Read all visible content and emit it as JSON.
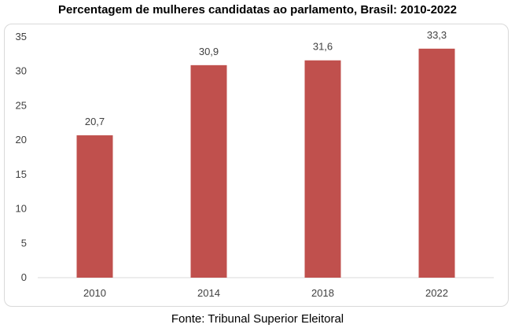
{
  "title": "Percentagem de mulheres candidatas ao parlamento, Brasil: 2010-2022",
  "source": "Fonte: Tribunal Superior Eleitoral",
  "chart_data": {
    "type": "bar",
    "title": "Percentagem de mulheres candidatas ao parlamento, Brasil: 2010-2022",
    "categories": [
      "2010",
      "2014",
      "2018",
      "2022"
    ],
    "values": [
      20.7,
      30.9,
      31.6,
      33.3
    ],
    "value_labels": [
      "20,7",
      "30,9",
      "31,6",
      "33,3"
    ],
    "xlabel": "",
    "ylabel": "",
    "ylim": [
      0,
      35
    ],
    "yticks": [
      0,
      5,
      10,
      15,
      20,
      25,
      30,
      35
    ],
    "grid": false,
    "legend": "none",
    "bar_color": "#c0504d"
  }
}
